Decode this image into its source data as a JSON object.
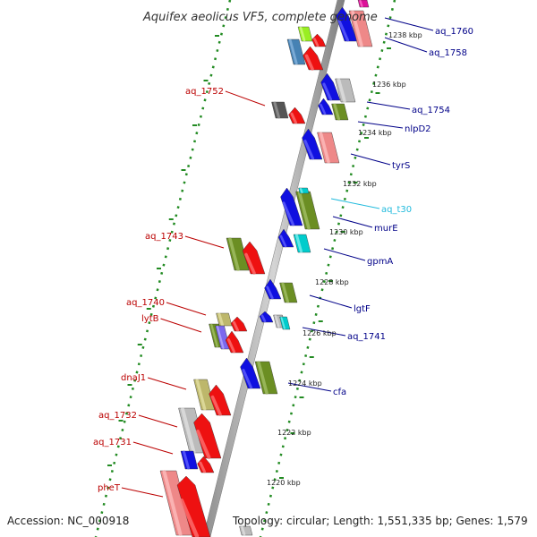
{
  "title": "Aquifex aeolicus VF5, complete genome",
  "accession": "Accession: NC_000918",
  "topology": "Topology: circular; Length: 1,551,335 bp; Genes: 1,579",
  "colors": {
    "blue": "#1010e0",
    "red": "#ee1111",
    "pink": "#ee8888",
    "olive": "#6b8e23",
    "khaki": "#bdb76b",
    "gray": "#bbbbbb",
    "darkgray": "#555555",
    "steel": "#4682b4",
    "cyan": "#00cccc",
    "lime": "#99ee22",
    "violet": "#7b68ee",
    "magenta": "#dd1199",
    "dots": "#228b22",
    "label_left": "#bb0000",
    "label_right": "#000088",
    "label_cyan": "#22bbdd"
  },
  "ticks": [
    {
      "label": "1238 kbp"
    },
    {
      "label": "1236 kbp"
    },
    {
      "label": "1234 kbp"
    },
    {
      "label": "1232 kbp"
    },
    {
      "label": "1230 kbp"
    },
    {
      "label": "1228 kbp"
    },
    {
      "label": "1226 kbp"
    },
    {
      "label": "1224 kbp"
    },
    {
      "label": "1222 kbp"
    },
    {
      "label": "1220 kbp"
    }
  ],
  "genes_right": [
    {
      "name": "aq_1760",
      "color": "label_right"
    },
    {
      "name": "aq_1758",
      "color": "label_right"
    },
    {
      "name": "aq_1754",
      "color": "label_right"
    },
    {
      "name": "nlpD2",
      "color": "label_right"
    },
    {
      "name": "tyrS",
      "color": "label_right"
    },
    {
      "name": "aq_t30",
      "color": "label_cyan"
    },
    {
      "name": "murE",
      "color": "label_right"
    },
    {
      "name": "gpmA",
      "color": "label_right"
    },
    {
      "name": "lgtF",
      "color": "label_right"
    },
    {
      "name": "aq_1741",
      "color": "label_right"
    },
    {
      "name": "cfa",
      "color": "label_right"
    }
  ],
  "genes_left": [
    {
      "name": "aq_1752"
    },
    {
      "name": "aq_1743"
    },
    {
      "name": "aq_1740"
    },
    {
      "name": "lytB"
    },
    {
      "name": "dnaJ1"
    },
    {
      "name": "aq_1732"
    },
    {
      "name": "aq_1731"
    },
    {
      "name": "pheT"
    }
  ]
}
